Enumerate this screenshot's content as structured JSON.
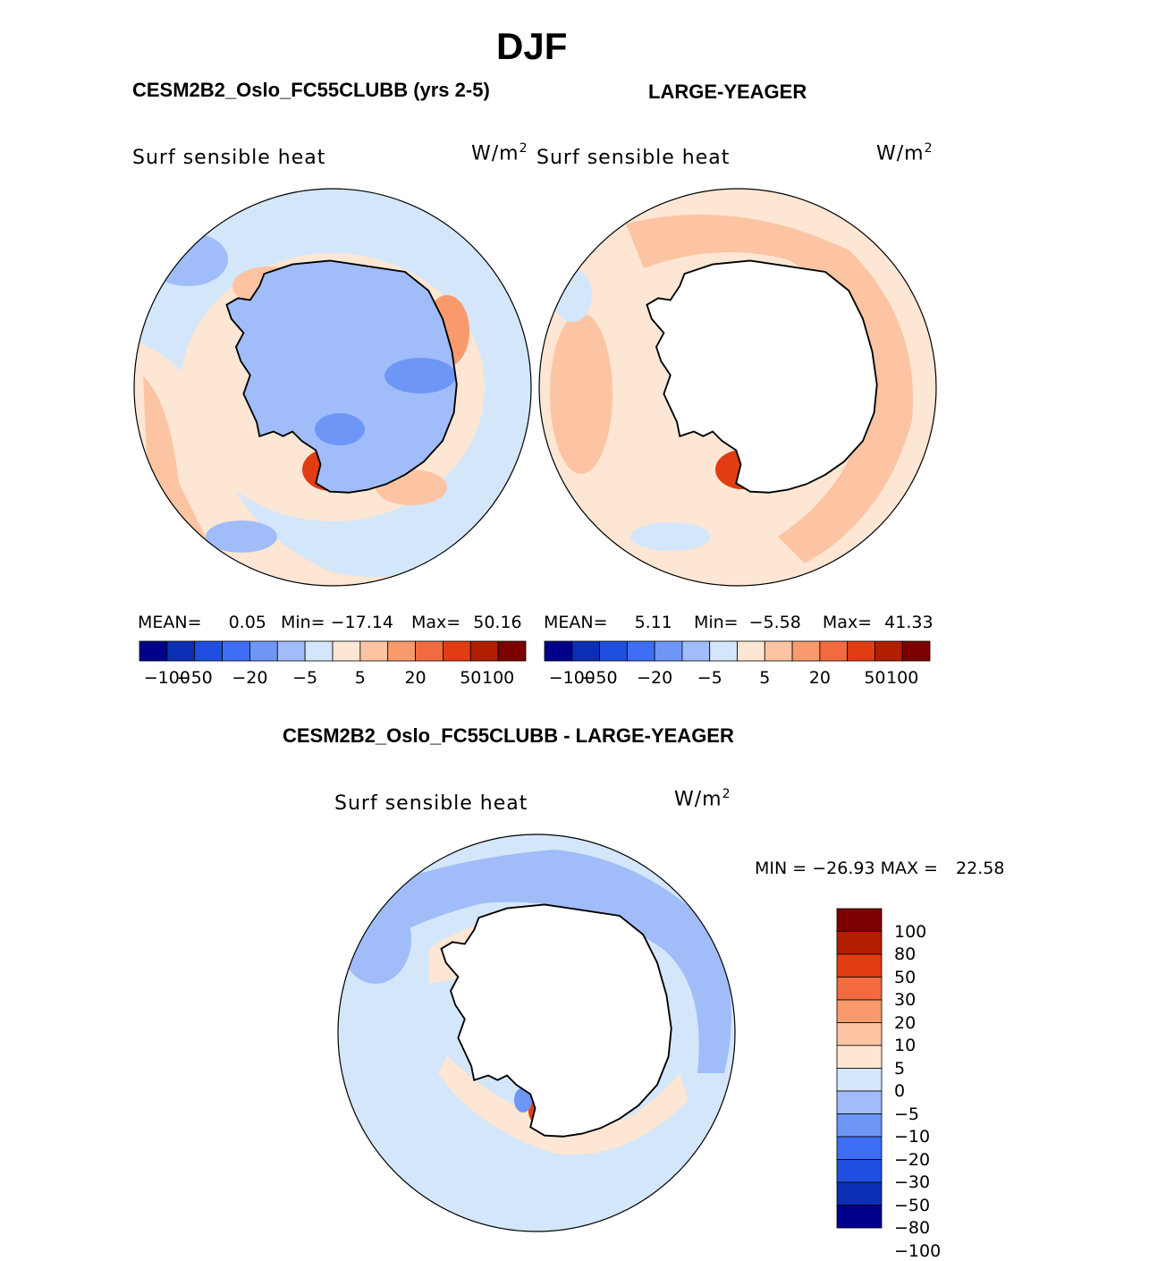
{
  "season": "DJF",
  "panels": [
    {
      "title": "CESM2B2_Oslo_FC55CLUBB (yrs 2-5)",
      "variable": "Surf sensible heat",
      "units_base": "W/m",
      "units_exp": "2",
      "stats": {
        "mean_label": "MEAN=",
        "mean": "0.05",
        "min_label": "Min=",
        "min": "−17.14",
        "max_label": "Max=",
        "max": "50.16"
      }
    },
    {
      "title": "LARGE-YEAGER",
      "variable": "Surf sensible heat",
      "units_base": "W/m",
      "units_exp": "2",
      "stats": {
        "mean_label": "MEAN=",
        "mean": "5.11",
        "min_label": "Min=",
        "min": "−5.58",
        "max_label": "Max=",
        "max": "41.33"
      }
    }
  ],
  "top_colorbar": {
    "colors": [
      "#00008b",
      "#0a2fb4",
      "#1f4fe0",
      "#3d6ef5",
      "#6e96f7",
      "#a0bdf9",
      "#d4e6fa",
      "#fde6d4",
      "#fcc4a2",
      "#f89a6c",
      "#f26a3f",
      "#e13c12",
      "#b31e00",
      "#7d0000"
    ],
    "tick_labels": [
      "−100",
      "−50",
      "−20",
      "−5",
      "5",
      "20",
      "50",
      "100"
    ]
  },
  "difference": {
    "title": "CESM2B2_Oslo_FC55CLUBB - LARGE-YEAGER",
    "variable": "Surf sensible heat",
    "units_base": "W/m",
    "units_exp": "2",
    "minmax": {
      "min_label": "MIN =",
      "min": "−26.93",
      "max_label": "MAX =",
      "max": "22.58"
    },
    "colorbar": {
      "colors": [
        "#7d0000",
        "#b31e00",
        "#e13c12",
        "#f26a3f",
        "#f89a6c",
        "#fcc4a2",
        "#fde6d4",
        "#d4e6fa",
        "#a0bdf9",
        "#6e96f7",
        "#3d6ef5",
        "#1f4fe0",
        "#0a2fb4",
        "#00008b"
      ],
      "tick_labels": [
        "100",
        "80",
        "50",
        "30",
        "20",
        "10",
        "5",
        "0",
        "−5",
        "−10",
        "−20",
        "−30",
        "−50",
        "−80",
        "−100"
      ]
    }
  },
  "palette": {
    "ocean_light_blue": "#d4e6fa",
    "light_orange": "#fde6d4",
    "salmon": "#fcc4a2",
    "orange": "#f89a6c",
    "red": "#e13c12",
    "mid_blue": "#a0bdf9",
    "blue": "#6e96f7",
    "land_white": "#ffffff"
  }
}
